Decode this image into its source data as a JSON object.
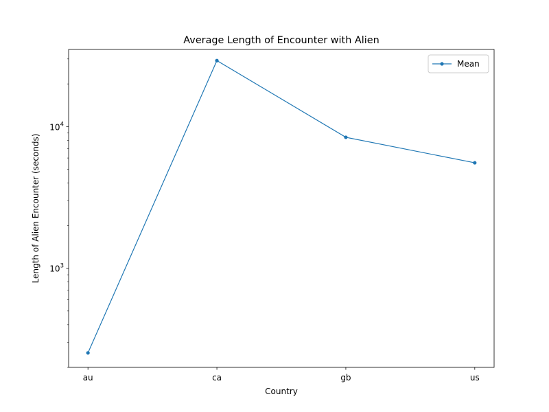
{
  "chart_data": {
    "type": "line",
    "title": "Average Length of Encounter with Alien",
    "xlabel": "Country",
    "ylabel": "Length of Alien Encounter (seconds)",
    "yscale": "log",
    "ylim": [
      200,
      35000
    ],
    "categories": [
      "au",
      "ca",
      "gb",
      "us"
    ],
    "series": [
      {
        "name": "Mean",
        "values": [
          253,
          29200,
          8400,
          5550
        ]
      }
    ],
    "y_ticks": [
      {
        "value": 1000,
        "base": "10",
        "exp": "3"
      },
      {
        "value": 10000,
        "base": "10",
        "exp": "4"
      }
    ],
    "legend": "top-right",
    "grid": false,
    "colors": {
      "series": "#1f77b4",
      "axes": "#000000"
    }
  }
}
